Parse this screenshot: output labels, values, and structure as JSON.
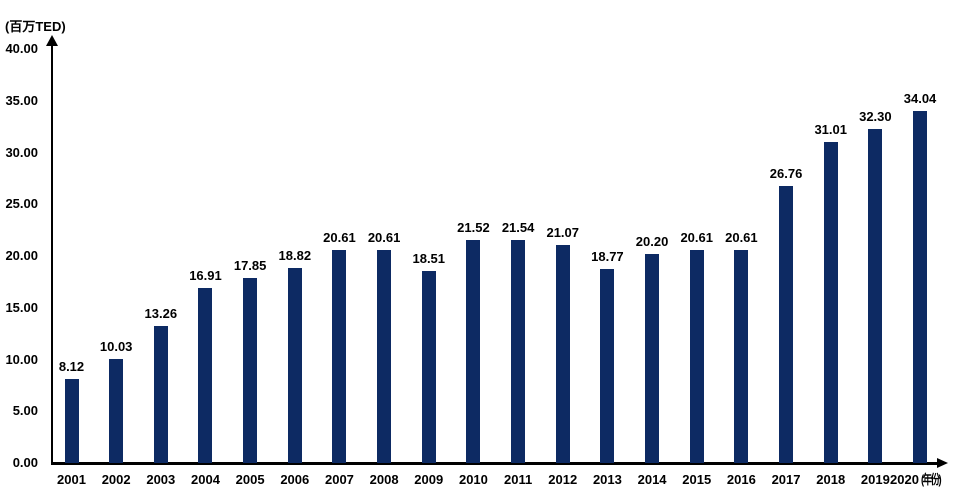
{
  "chart_data": {
    "type": "bar",
    "title": "",
    "unit_label": "(百万TED)",
    "x_axis_suffix": "(年份)",
    "categories": [
      "2001",
      "2002",
      "2003",
      "2004",
      "2005",
      "2006",
      "2007",
      "2008",
      "2009",
      "2010",
      "2011",
      "2012",
      "2013",
      "2014",
      "2015",
      "2016",
      "2017",
      "2018",
      "2019",
      "2020"
    ],
    "values": [
      8.12,
      10.03,
      13.26,
      16.91,
      17.85,
      18.82,
      20.61,
      20.61,
      18.51,
      21.52,
      21.54,
      21.07,
      18.77,
      20.2,
      20.61,
      20.61,
      26.76,
      31.01,
      32.3,
      34.04
    ],
    "value_label_format": "2-decimals",
    "xlabel": "",
    "ylabel": "(百万TED)",
    "ylim": [
      0,
      40
    ],
    "y_ticks": [
      "0.00",
      "5.00",
      "10.00",
      "15.00",
      "20.00",
      "25.00",
      "30.00",
      "35.00",
      "40.00"
    ],
    "y_tick_step": 5,
    "bar_color": "#0d2a63",
    "text_color": "#000000",
    "grid": "off",
    "legend": "none"
  }
}
